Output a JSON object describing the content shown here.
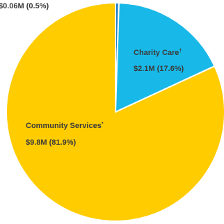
{
  "chart_data": {
    "type": "pie",
    "start_angle_deg": -90,
    "direction": "clockwise",
    "slices": [
      {
        "key": "other",
        "name": "",
        "value": 0.06,
        "share_percent": 0.5,
        "value_label": "$0.06M (0.5%)",
        "color": "#1e7fc4"
      },
      {
        "key": "charity",
        "name": "Charity Care",
        "name_sup": "†",
        "value": 2.1,
        "share_percent": 17.6,
        "value_label": "$2.1M (17.6%)",
        "color": "#18b9e8"
      },
      {
        "key": "community",
        "name": "Community Services",
        "name_sup": "*",
        "value": 9.8,
        "share_percent": 81.9,
        "value_label": "$9.8M (81.9%)",
        "color": "#ffcc00"
      }
    ],
    "slice_border_color": "#ffffff"
  }
}
